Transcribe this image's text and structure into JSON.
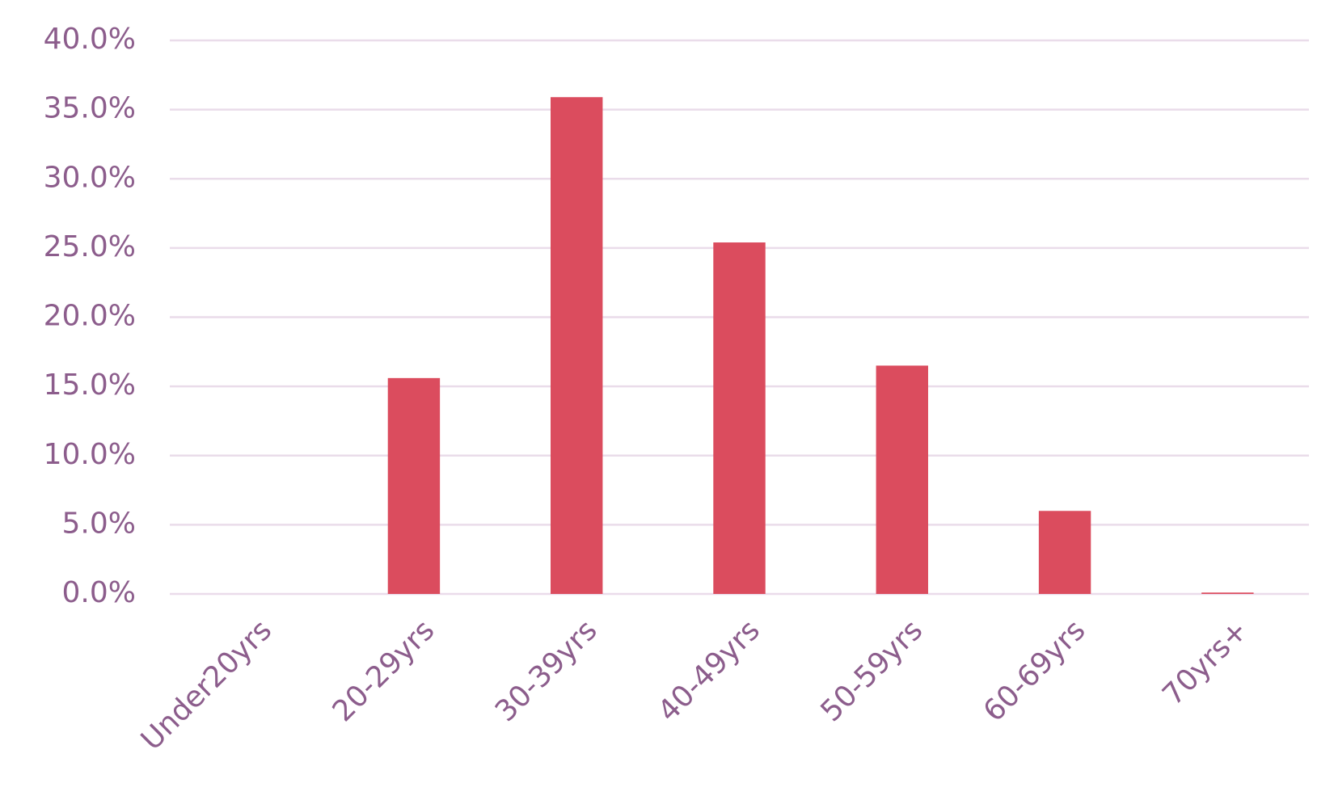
{
  "chart_data": {
    "type": "bar",
    "categories": [
      "Under20yrs",
      "20-29yrs",
      "30-39yrs",
      "40-49yrs",
      "50-59yrs",
      "60-69yrs",
      "70yrs+"
    ],
    "values": [
      0,
      15.6,
      35.9,
      25.4,
      16.5,
      6.0,
      0.1
    ],
    "color": "#db4c5e",
    "ylim": [
      0,
      40
    ],
    "yticks": [
      {
        "value": 0,
        "label": "0.0%"
      },
      {
        "value": 5,
        "label": "5.0%"
      },
      {
        "value": 10,
        "label": "10.0%"
      },
      {
        "value": 15,
        "label": "15.0%"
      },
      {
        "value": 20,
        "label": "20.0%"
      },
      {
        "value": 25,
        "label": "25.0%"
      },
      {
        "value": 30,
        "label": "30.0%"
      },
      {
        "value": 35,
        "label": "35.0%"
      },
      {
        "value": 40,
        "label": "40.0%"
      }
    ],
    "grid": true
  }
}
